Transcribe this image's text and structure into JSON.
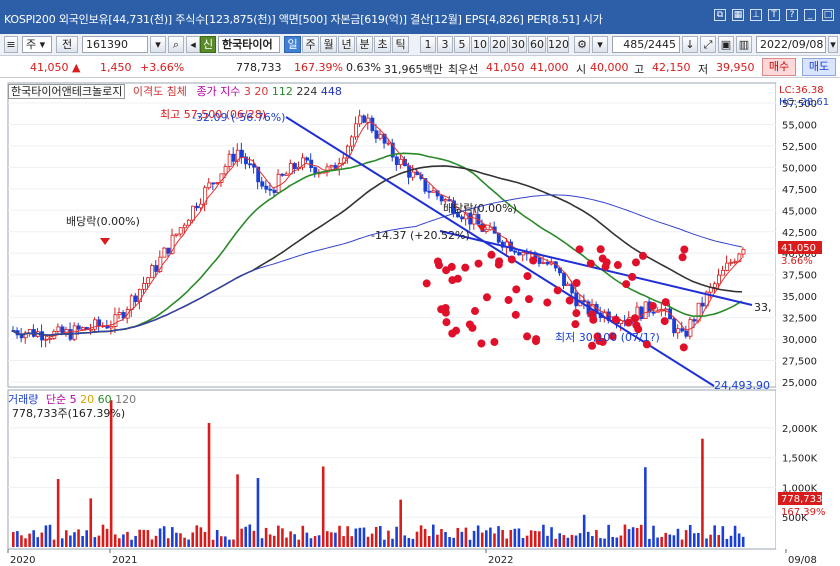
{
  "window": {
    "title": "KOSPI200 외국인보유[44,731(천)] 주식수[123,875(천)] 액면[500] 자본금[619(억)] 결산[12월] EPS[4,826] PER[8.51] 시가"
  },
  "toolbar": {
    "type_label": "주",
    "jeon_label": "전",
    "code_value": "161390",
    "company_badge": "신",
    "company_name": "한국타이어",
    "periods": [
      "일",
      "주",
      "월",
      "년",
      "분",
      "초",
      "틱"
    ],
    "active_period": "일",
    "intervals": [
      "1",
      "3",
      "5",
      "10",
      "20",
      "30",
      "60",
      "120"
    ],
    "count_value": "485/2445",
    "date_value": "2022/09/08"
  },
  "pricebar": {
    "price": "41,050",
    "change": "1,450",
    "change_pct": "+3.66%",
    "volume": "778,733",
    "volume_ratio": "167.39%",
    "turnover": "0.63%",
    "trade_value": "31,965백만",
    "best_bid_label": "최우선",
    "best_bid": "41,050",
    "best_ask": "41,000",
    "open_label": "시",
    "open": "40,000",
    "high_label": "고",
    "high": "42,150",
    "low_label": "저",
    "low": "39,950",
    "buy_button": "매수",
    "sell_button": "매도"
  },
  "price_panel": {
    "stock_label": "한국타이어앤테크놀로지",
    "indicator_label": "이격도 침체",
    "ma_label": "종가 지수",
    "ma_periods": [
      "3",
      "20",
      "112",
      "224",
      "448"
    ],
    "lc_label": "LC:36.38",
    "hc_label": "HC:-28.61",
    "y_ticks": [
      "57,500",
      "55,000",
      "52,500",
      "50,000",
      "47,500",
      "45,000",
      "42,500",
      "40,000",
      "37,500",
      "35,000",
      "32,500",
      "30,000",
      "27,500",
      "25,000"
    ],
    "current_price_tag": "41,050",
    "current_pct_tag": "3.66%",
    "annotations": {
      "high": "최고 57,500 (06/28)",
      "high_pct": "-32.09 (-56.76%)",
      "low": "최저 30,100 (07/1?)",
      "dividend1": "배당락(0.00%)",
      "dividend2": "배당락(0.00%)",
      "mid_change": "-14.37 (+20.52%)",
      "trend1": "33,",
      "trend2": "24,493.90"
    }
  },
  "volume_panel": {
    "label": "거래량",
    "ma_label": "단순",
    "ma_periods": [
      "5",
      "20",
      "60",
      "120"
    ],
    "value_label": "778,733주(167.39%)",
    "y_ticks": [
      "2,000K",
      "1,500K",
      "1,000K",
      "500K"
    ],
    "current_tag": "778,733",
    "current_pct_tag": "167.39%"
  },
  "x_axis": {
    "labels": [
      "2020",
      "2021",
      "2022",
      "09/08"
    ]
  },
  "colors": {
    "accent": "#2d5fa8",
    "up": "#d81b1b",
    "down": "#1a3fd6"
  }
}
